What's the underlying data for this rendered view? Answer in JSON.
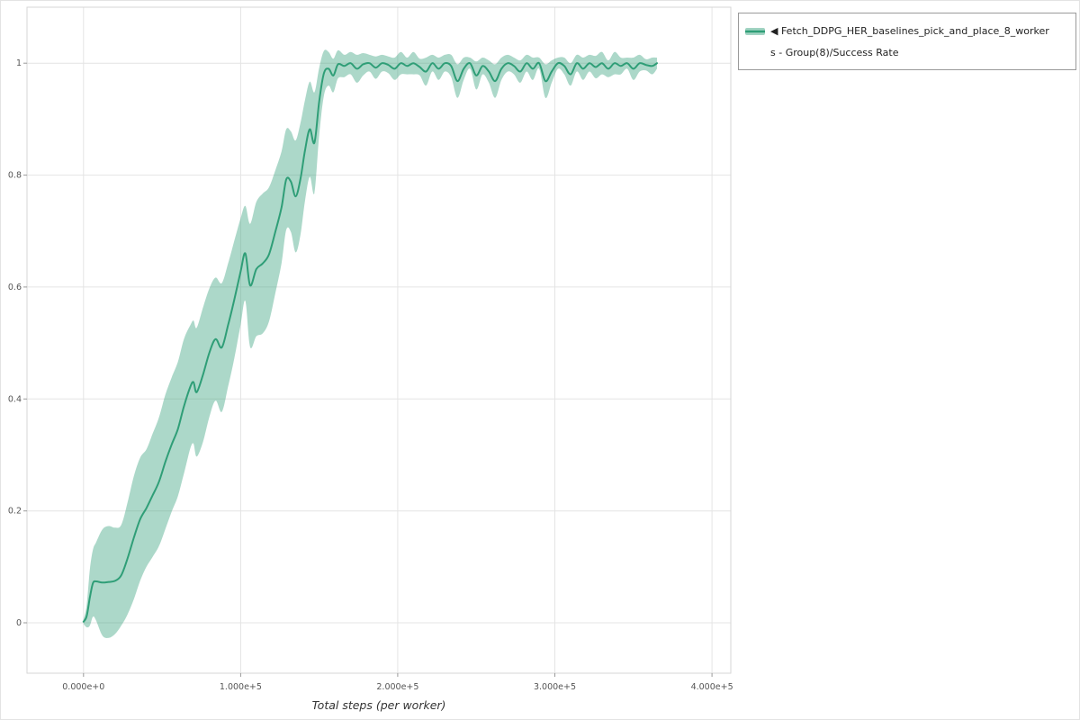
{
  "chart_data": {
    "type": "line",
    "title": "",
    "xlabel": "Total steps (per worker)",
    "ylabel": "",
    "grid": true,
    "legend_position": "outside-top-right",
    "xlim": [
      -36000,
      412000
    ],
    "ylim": [
      -0.09,
      1.1
    ],
    "xticks": {
      "values": [
        0,
        100000,
        200000,
        300000,
        400000
      ],
      "labels": [
        "0.000e+0",
        "1.000e+5",
        "2.000e+5",
        "3.000e+5",
        "4.000e+5"
      ]
    },
    "yticks": {
      "values": [
        0,
        0.2,
        0.4,
        0.6,
        0.8,
        1
      ],
      "labels": [
        "0",
        "0.2",
        "0.4",
        "0.6",
        "0.8",
        "1"
      ]
    },
    "legend": {
      "lines": [
        "◀ Fetch_DDPG_HER_baselines_pick_and_place_8_worker",
        "s - Group(8)/Success Rate"
      ],
      "full_name": "Fetch_DDPG_HER_baselines_pick_and_place_8_workers - Group(8)/Success Rate"
    },
    "series": [
      {
        "name": "Fetch_DDPG_HER_baselines_pick_and_place_8_workers - Group(8)/Success Rate",
        "color": "#2f9e77",
        "band_color": "#2f9e77",
        "band_opacity": 0.4,
        "x": [
          0,
          2000,
          4000,
          6000,
          8000,
          12000,
          16000,
          20000,
          24000,
          28000,
          32000,
          36000,
          40000,
          44000,
          48000,
          52000,
          56000,
          60000,
          64000,
          68000,
          70000,
          72000,
          76000,
          80000,
          84000,
          88000,
          92000,
          96000,
          100000,
          103000,
          106000,
          110000,
          114000,
          118000,
          122000,
          126000,
          129000,
          132000,
          135000,
          138000,
          141000,
          144000,
          147000,
          150000,
          153000,
          156000,
          159000,
          162000,
          166000,
          170000,
          174000,
          178000,
          182000,
          186000,
          190000,
          194000,
          198000,
          202000,
          206000,
          210000,
          214000,
          218000,
          222000,
          226000,
          230000,
          234000,
          238000,
          242000,
          246000,
          250000,
          254000,
          258000,
          262000,
          266000,
          270000,
          274000,
          278000,
          282000,
          286000,
          290000,
          294000,
          298000,
          302000,
          306000,
          310000,
          314000,
          318000,
          322000,
          326000,
          330000,
          334000,
          338000,
          342000,
          346000,
          350000,
          354000,
          358000,
          362000,
          365000
        ],
        "mean": [
          0.002,
          0.012,
          0.045,
          0.071,
          0.074,
          0.072,
          0.073,
          0.075,
          0.085,
          0.115,
          0.152,
          0.185,
          0.205,
          0.228,
          0.252,
          0.287,
          0.318,
          0.346,
          0.388,
          0.422,
          0.43,
          0.412,
          0.443,
          0.482,
          0.507,
          0.492,
          0.532,
          0.578,
          0.628,
          0.66,
          0.603,
          0.632,
          0.642,
          0.658,
          0.698,
          0.742,
          0.792,
          0.788,
          0.762,
          0.792,
          0.845,
          0.882,
          0.858,
          0.932,
          0.982,
          0.99,
          0.978,
          0.998,
          0.995,
          1.0,
          0.99,
          0.998,
          1.0,
          0.992,
          1.0,
          0.997,
          0.99,
          1.0,
          0.995,
          1.0,
          0.993,
          0.985,
          1.0,
          0.99,
          1.0,
          0.995,
          0.968,
          0.99,
          1.0,
          0.978,
          0.995,
          0.985,
          0.968,
          0.99,
          1.0,
          0.995,
          0.985,
          1.0,
          0.99,
          1.0,
          0.968,
          0.985,
          1.0,
          0.995,
          0.98,
          1.0,
          0.99,
          1.0,
          0.993,
          1.0,
          0.99,
          1.0,
          0.995,
          1.0,
          0.99,
          1.0,
          0.997,
          0.995,
          1.0
        ],
        "band_halfwidth": [
          0.004,
          0.02,
          0.05,
          0.06,
          0.07,
          0.095,
          0.1,
          0.095,
          0.09,
          0.1,
          0.11,
          0.11,
          0.105,
          0.11,
          0.115,
          0.12,
          0.12,
          0.12,
          0.12,
          0.11,
          0.11,
          0.115,
          0.12,
          0.115,
          0.11,
          0.115,
          0.11,
          0.105,
          0.095,
          0.085,
          0.11,
          0.12,
          0.125,
          0.12,
          0.11,
          0.1,
          0.09,
          0.09,
          0.1,
          0.1,
          0.09,
          0.085,
          0.09,
          0.06,
          0.04,
          0.03,
          0.03,
          0.025,
          0.02,
          0.02,
          0.025,
          0.02,
          0.015,
          0.02,
          0.015,
          0.015,
          0.02,
          0.02,
          0.015,
          0.02,
          0.015,
          0.025,
          0.015,
          0.02,
          0.015,
          0.02,
          0.03,
          0.02,
          0.01,
          0.025,
          0.015,
          0.02,
          0.03,
          0.02,
          0.015,
          0.015,
          0.02,
          0.015,
          0.02,
          0.01,
          0.03,
          0.02,
          0.01,
          0.015,
          0.02,
          0.015,
          0.02,
          0.015,
          0.02,
          0.02,
          0.015,
          0.02,
          0.015,
          0.01,
          0.02,
          0.015,
          0.01,
          0.015,
          0.01
        ]
      }
    ],
    "style": {
      "grid_color": "#e4e4e4",
      "border_color": "#d6d6d6",
      "tick_color": "#999999",
      "tick_label_color": "#555555"
    }
  }
}
